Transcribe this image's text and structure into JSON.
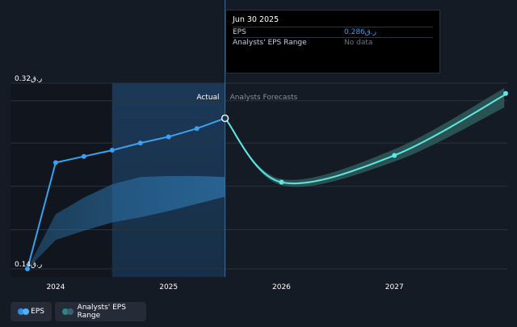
{
  "tooltip": {
    "date": "Jun 30 2025",
    "rows": [
      {
        "label": "EPS",
        "value": "ر.ق0.286"
      },
      {
        "label": "Analysts' EPS Range",
        "value": "No data"
      }
    ]
  },
  "legend": [
    {
      "label": "EPS",
      "colors": [
        "#2e8fe0",
        "#4fb2ff"
      ]
    },
    {
      "label": "Analysts' EPS Range",
      "colors": [
        "#2e8585",
        "#3a5f73"
      ]
    }
  ],
  "colors": {
    "background": "#151b24",
    "eps_line": "#3aa0f0",
    "forecast_line": "#5ee8e4",
    "range_band": "#2a6b9e",
    "forecast_band": "#2f5c5c"
  },
  "chart_data": {
    "type": "line",
    "y_ticks": [
      {
        "value": 0.32,
        "label": "ر.ق0.32"
      },
      {
        "value": 0.14,
        "label": "ر.ق0.14"
      }
    ],
    "x_ticks": [
      {
        "value": 2024,
        "label": "2024"
      },
      {
        "value": 2025,
        "label": "2025"
      },
      {
        "value": 2026,
        "label": "2026"
      },
      {
        "value": 2027,
        "label": "2027"
      }
    ],
    "xlim": [
      2023.6,
      2028.0
    ],
    "ylim": [
      0.14,
      0.32
    ],
    "section_labels": {
      "actual": "Actual",
      "forecast": "Analysts Forecasts"
    },
    "divider_x": 2025.5,
    "highlight_x": [
      2024.5,
      2025.5
    ],
    "dark_x": [
      2023.6,
      2024.5
    ],
    "grid_values": [
      0.32,
      0.303,
      0.262,
      0.22,
      0.178,
      0.14
    ],
    "eps": [
      {
        "x": 2023.75,
        "y": 0.14
      },
      {
        "x": 2024.0,
        "y": 0.243
      },
      {
        "x": 2024.25,
        "y": 0.249
      },
      {
        "x": 2024.5,
        "y": 0.255
      },
      {
        "x": 2024.75,
        "y": 0.262
      },
      {
        "x": 2025.0,
        "y": 0.268
      },
      {
        "x": 2025.25,
        "y": 0.276
      },
      {
        "x": 2025.5,
        "y": 0.286
      }
    ],
    "eps_range": {
      "upper": [
        {
          "x": 2023.75,
          "y": 0.14
        },
        {
          "x": 2024.0,
          "y": 0.193
        },
        {
          "x": 2024.25,
          "y": 0.209
        },
        {
          "x": 2024.5,
          "y": 0.222
        },
        {
          "x": 2024.75,
          "y": 0.229
        },
        {
          "x": 2025.0,
          "y": 0.23
        },
        {
          "x": 2025.25,
          "y": 0.23
        },
        {
          "x": 2025.5,
          "y": 0.229
        }
      ],
      "lower": [
        {
          "x": 2023.75,
          "y": 0.14
        },
        {
          "x": 2024.0,
          "y": 0.168
        },
        {
          "x": 2024.25,
          "y": 0.177
        },
        {
          "x": 2024.5,
          "y": 0.185
        },
        {
          "x": 2024.75,
          "y": 0.19
        },
        {
          "x": 2025.0,
          "y": 0.196
        },
        {
          "x": 2025.25,
          "y": 0.203
        },
        {
          "x": 2025.5,
          "y": 0.21
        }
      ]
    },
    "forecast": [
      {
        "x": 2025.5,
        "y": 0.286
      },
      {
        "x": 2026.0,
        "y": 0.224
      },
      {
        "x": 2027.0,
        "y": 0.25
      },
      {
        "x": 2028.0,
        "y": 0.31
      }
    ],
    "forecast_range": {
      "upper": [
        {
          "x": 2025.5,
          "y": 0.286
        },
        {
          "x": 2026.0,
          "y": 0.227
        },
        {
          "x": 2027.0,
          "y": 0.256
        },
        {
          "x": 2028.0,
          "y": 0.317
        }
      ],
      "lower": [
        {
          "x": 2025.5,
          "y": 0.286
        },
        {
          "x": 2026.0,
          "y": 0.221
        },
        {
          "x": 2027.0,
          "y": 0.244
        },
        {
          "x": 2028.0,
          "y": 0.298
        }
      ]
    }
  }
}
